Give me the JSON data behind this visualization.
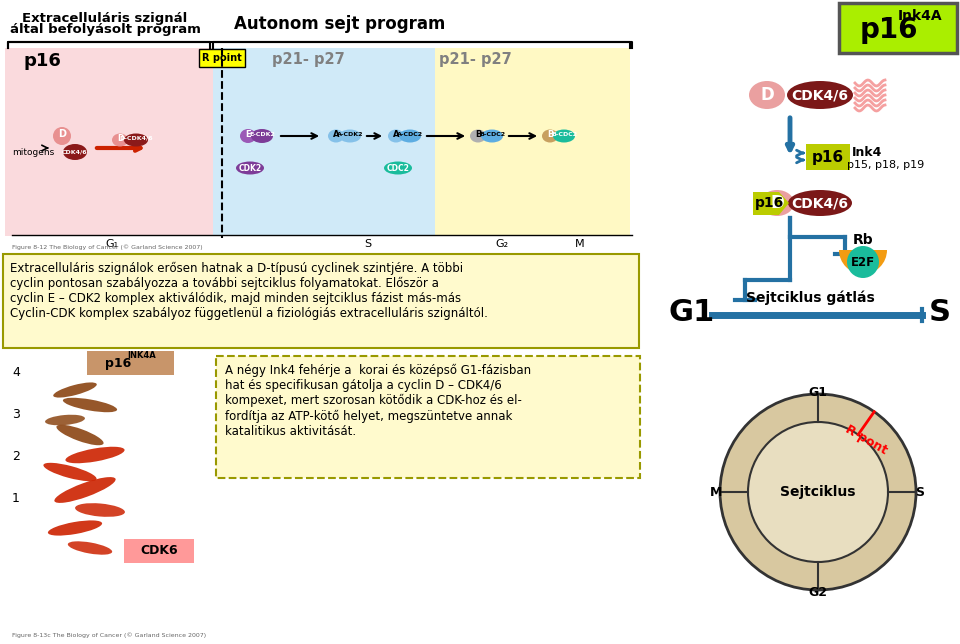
{
  "title_left1": "Extracelluláris szignál",
  "title_left2": "által befolyásolt program",
  "title_center": "Autonom sejt program",
  "label_p16": "p16",
  "label_rpoint": "R point",
  "label_p21p27_1": "p21- p27",
  "label_p21p27_2": "p21- p27",
  "text_box1_line1": "Extracelluláris szignálok erősen hatnak a D-típusú cyclinek szintjére. A többi",
  "text_box1_line2": "cyclin pontosan szabályozza a további sejtciklus folyamatokat. Először a",
  "text_box1_line3": "cyclin E – CDK2 komplex aktiválódik, majd minden sejtciklus fázist más-más",
  "text_box1_line4": "Cyclin-CDK komplex szabályoz függetlenül a fiziológiás extracelluláris szignáltól.",
  "text_box2_line1": "A négy Ink4 fehérje a  korai és középső G1-fázisban",
  "text_box2_line2": "hat és specifikusan gátolja a cyclin D – CDK4/6",
  "text_box2_line3": "kompexet, mert szorosan kötődik a CDK-hoz és el-",
  "text_box2_line4": "fordítja az ATP-kötő helyet, megszüntetve annak",
  "text_box2_line5": "katalitikus aktivitását.",
  "circle_center": "Sejtciklus",
  "circle_G1": "G1",
  "circle_S": "S",
  "circle_G2": "G2",
  "circle_M": "M",
  "circle_Rpoint": "R pont",
  "sejtciklus_gatas": "Sejtciklus gátlás",
  "bg_color": "#ffffff",
  "fig_width": 9.6,
  "fig_height": 6.44
}
